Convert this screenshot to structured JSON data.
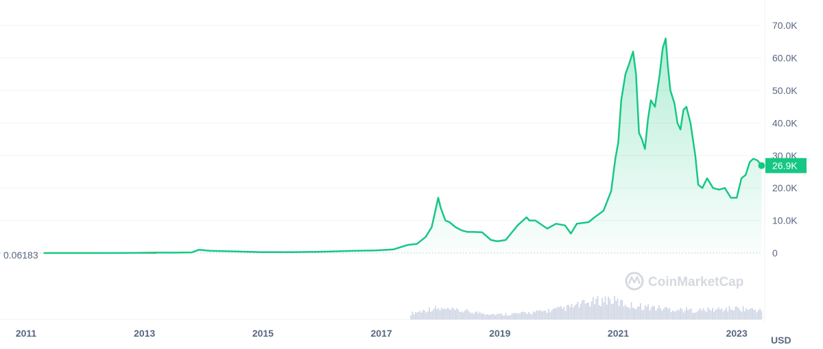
{
  "chart_data": {
    "type": "line",
    "currency_label": "USD",
    "start_value_label": "0.06183",
    "current_price_label": "26.9K",
    "current_price": 26900,
    "watermark": "CoinMarketCap",
    "y_ticks": [
      "0",
      "10.0K",
      "20.0K",
      "30.0K",
      "40.0K",
      "50.0K",
      "60.0K",
      "70.0K"
    ],
    "y_tick_values": [
      0,
      10000,
      20000,
      30000,
      40000,
      50000,
      60000,
      70000
    ],
    "x_ticks": [
      "2011",
      "2013",
      "2015",
      "2017",
      "2019",
      "2021",
      "2023"
    ],
    "x_tick_values": [
      2011,
      2013,
      2015,
      2017,
      2019,
      2021,
      2023
    ],
    "ylim": [
      0,
      72000
    ],
    "grid": true,
    "colors": {
      "line": "#16c784",
      "baseline": "#ea3943",
      "volume": "#cfd6e4",
      "text": "#58667e"
    },
    "x": [
      2011.3,
      2011.8,
      2012.3,
      2012.8,
      2013.2,
      2013.5,
      2013.8,
      2013.92,
      2014.1,
      2014.5,
      2015.0,
      2015.5,
      2016.0,
      2016.5,
      2016.9,
      2017.2,
      2017.45,
      2017.6,
      2017.75,
      2017.85,
      2017.96,
      2018.0,
      2018.08,
      2018.15,
      2018.25,
      2018.35,
      2018.45,
      2018.55,
      2018.7,
      2018.85,
      2018.96,
      2019.1,
      2019.3,
      2019.45,
      2019.5,
      2019.6,
      2019.8,
      2019.95,
      2020.1,
      2020.2,
      2020.3,
      2020.5,
      2020.6,
      2020.75,
      2020.88,
      2020.95,
      2021.0,
      2021.05,
      2021.12,
      2021.18,
      2021.25,
      2021.3,
      2021.35,
      2021.4,
      2021.45,
      2021.5,
      2021.55,
      2021.62,
      2021.7,
      2021.75,
      2021.8,
      2021.84,
      2021.88,
      2021.95,
      2022.0,
      2022.05,
      2022.1,
      2022.15,
      2022.22,
      2022.3,
      2022.35,
      2022.42,
      2022.5,
      2022.6,
      2022.7,
      2022.8,
      2022.9,
      2023.0,
      2023.08,
      2023.15,
      2023.22,
      2023.28,
      2023.35,
      2023.42
    ],
    "y": [
      1,
      5,
      6,
      12,
      120,
      100,
      200,
      1000,
      700,
      500,
      250,
      250,
      400,
      650,
      800,
      1100,
      2500,
      2800,
      5000,
      8000,
      17000,
      14000,
      10000,
      9500,
      8000,
      7000,
      6500,
      6500,
      6400,
      4000,
      3600,
      4000,
      8500,
      11000,
      10000,
      10000,
      7500,
      9000,
      8500,
      6000,
      9000,
      9500,
      11000,
      13000,
      19000,
      29000,
      34000,
      47000,
      55000,
      58000,
      62000,
      55000,
      37000,
      35000,
      32000,
      41000,
      47000,
      45000,
      55000,
      63000,
      66000,
      57000,
      50000,
      46000,
      40000,
      38000,
      44000,
      45000,
      40000,
      30000,
      21000,
      20000,
      23000,
      20000,
      19500,
      20000,
      17000,
      17000,
      23000,
      24000,
      28000,
      29000,
      28500,
      26900
    ],
    "volume_profile": [
      0.3,
      0.55,
      0.45,
      0.35,
      0.25,
      0.3,
      0.4,
      0.55,
      0.8,
      1.0,
      0.7,
      0.6,
      0.5,
      0.45,
      0.5,
      0.55,
      0.45
    ]
  }
}
